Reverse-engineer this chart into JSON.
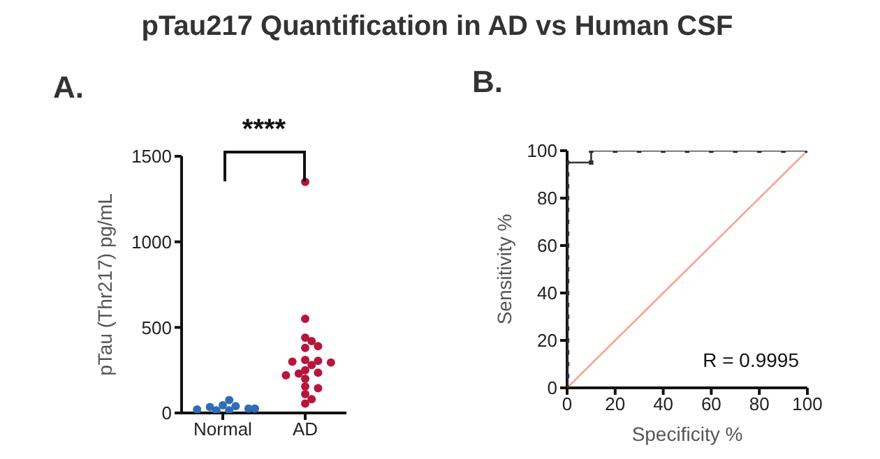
{
  "chart_data": [
    {
      "type": "scatter",
      "title": "pTau217 Quantification in AD vs Human CSF",
      "ylabel": "pTau (Thr217) pg/mL",
      "categories": [
        "Normal",
        "AD"
      ],
      "ylim": [
        0,
        1500
      ],
      "yticks": [
        0,
        500,
        1000,
        1500
      ],
      "grid": false,
      "legend": false,
      "marker": "circle",
      "annotations": [
        "A.",
        "****"
      ],
      "series": [
        {
          "color": "#2f6db5",
          "x": [
            "Normal",
            "Normal",
            "Normal",
            "Normal",
            "Normal",
            "Normal",
            "Normal",
            "Normal",
            "Normal"
          ],
          "values": [
            45,
            40,
            35,
            25,
            15,
            15,
            20,
            25,
            75
          ]
        },
        {
          "color": "#b8153b",
          "x": [
            "AD",
            "AD",
            "AD",
            "AD",
            "AD",
            "AD",
            "AD",
            "AD",
            "AD",
            "AD",
            "AD",
            "AD",
            "AD",
            "AD",
            "AD",
            "AD",
            "AD",
            "AD",
            "AD",
            "AD",
            "AD"
          ],
          "values": [
            1350,
            550,
            440,
            420,
            380,
            390,
            310,
            305,
            300,
            295,
            280,
            250,
            235,
            230,
            220,
            200,
            155,
            145,
            110,
            80,
            55
          ]
        }
      ]
    },
    {
      "type": "line",
      "xlabel": "Specificity %",
      "ylabel": "Sensitivity %",
      "xlim": [
        0,
        100
      ],
      "ylim": [
        0,
        100
      ],
      "xticks": [
        0,
        20,
        40,
        60,
        80,
        100
      ],
      "yticks": [
        0,
        20,
        40,
        60,
        80,
        100
      ],
      "grid": false,
      "legend": false,
      "annotations": [
        "B.",
        "R = 0.9995"
      ],
      "series": [
        {
          "color": "#f4a58c",
          "marker": "none",
          "x": [
            0,
            100
          ],
          "values": [
            0,
            100
          ]
        },
        {
          "color": "#333333",
          "marker": "square",
          "x": [
            0,
            0,
            0,
            0,
            0,
            0,
            0,
            0,
            0,
            0,
            0,
            0,
            0,
            0,
            0,
            0,
            0,
            0,
            0,
            0,
            10,
            10,
            20,
            30,
            40,
            50,
            60,
            70,
            80,
            90,
            100
          ],
          "values": [
            0,
            5,
            10,
            15,
            20,
            25,
            30,
            35,
            40,
            45,
            50,
            55,
            60,
            65,
            70,
            75,
            80,
            85,
            90,
            95,
            95,
            100,
            100,
            100,
            100,
            100,
            100,
            100,
            100,
            100,
            100
          ]
        }
      ]
    }
  ]
}
